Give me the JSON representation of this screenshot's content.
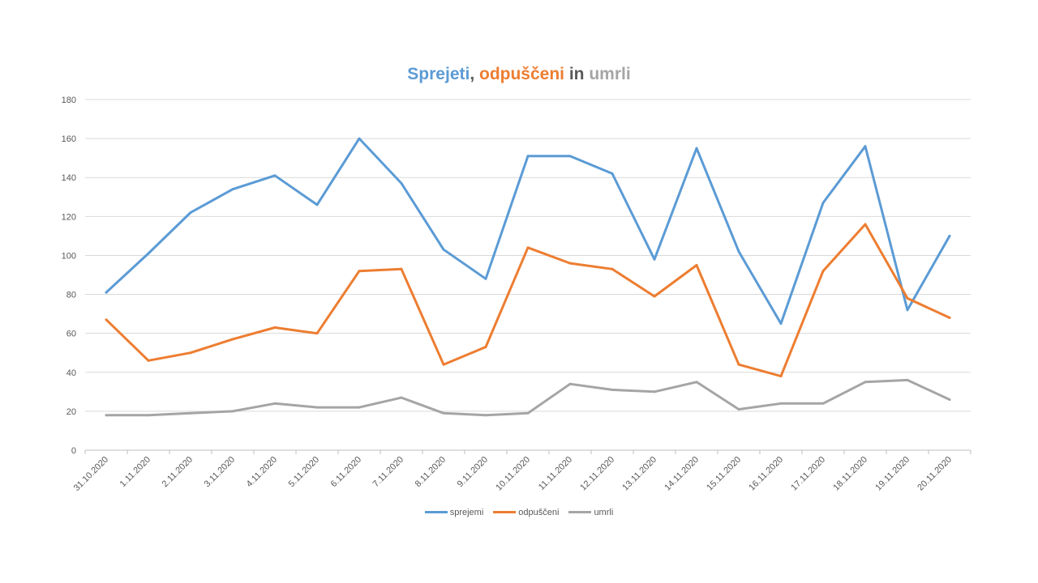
{
  "chart_data": {
    "type": "line",
    "title_parts": [
      {
        "text": "Sprejeti",
        "color": "#5b9bd5"
      },
      {
        "text": ", ",
        "color": "#595959"
      },
      {
        "text": "odpuščeni",
        "color": "#ed7d31"
      },
      {
        "text": " in ",
        "color": "#595959"
      },
      {
        "text": "umrli",
        "color": "#a5a5a5"
      }
    ],
    "categories": [
      "31.10.2020",
      "1.11.2020",
      "2.11.2020",
      "3.11.2020",
      "4.11.2020",
      "5.11.2020",
      "6.11.2020",
      "7.11.2020",
      "8.11.2020",
      "9.11.2020",
      "10.11.2020",
      "11.11.2020",
      "12.11.2020",
      "13.11.2020",
      "14.11.2020",
      "15.11.2020",
      "16.11.2020",
      "17.11.2020",
      "18.11.2020",
      "19.11.2020",
      "20.11.2020"
    ],
    "series": [
      {
        "name": "sprejemi",
        "color": "#5b9bd5",
        "values": [
          81,
          101,
          122,
          134,
          141,
          126,
          160,
          137,
          103,
          88,
          151,
          151,
          142,
          98,
          155,
          102,
          65,
          127,
          156,
          72,
          110
        ]
      },
      {
        "name": "odpuščeni",
        "color": "#ed7d31",
        "values": [
          67,
          46,
          50,
          57,
          63,
          60,
          92,
          93,
          44,
          53,
          104,
          96,
          93,
          79,
          95,
          44,
          38,
          92,
          116,
          78,
          68
        ]
      },
      {
        "name": "umrli",
        "color": "#a5a5a5",
        "values": [
          18,
          18,
          19,
          20,
          24,
          22,
          22,
          27,
          19,
          18,
          19,
          34,
          31,
          30,
          35,
          21,
          24,
          24,
          35,
          36,
          26
        ]
      }
    ],
    "ylim": [
      0,
      180
    ],
    "yticks": [
      0,
      20,
      40,
      60,
      80,
      100,
      120,
      140,
      160,
      180
    ],
    "xlabel": "",
    "ylabel": "",
    "grid": true,
    "legend_position": "bottom"
  }
}
